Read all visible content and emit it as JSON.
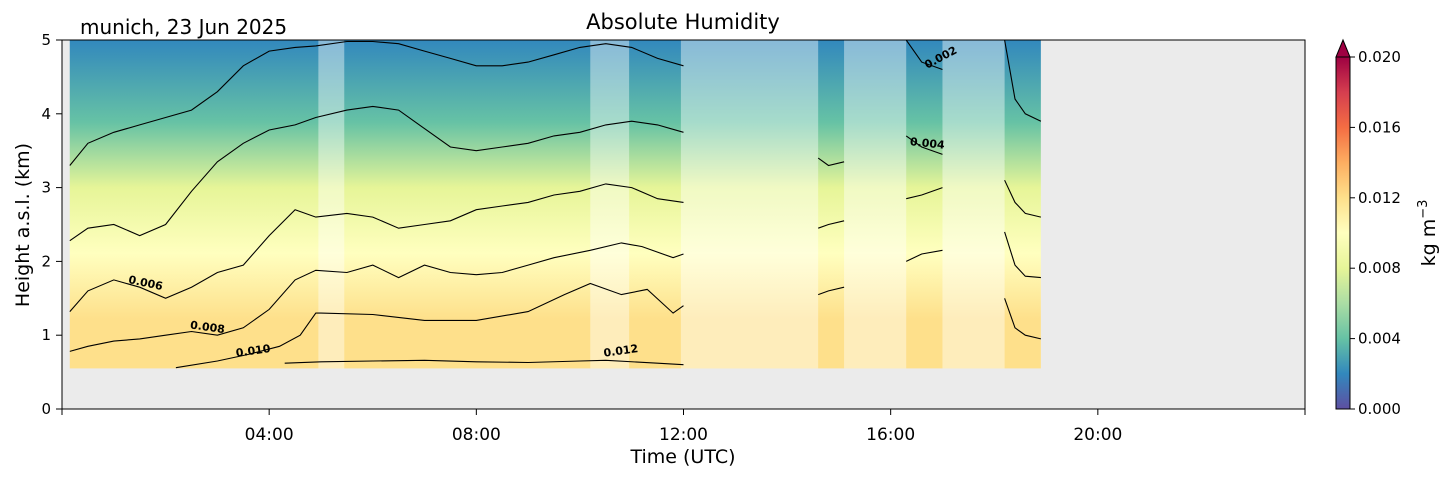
{
  "page": {
    "station_label": "munich, 23 Jun 2025"
  },
  "chart_data": {
    "type": "heatmap",
    "title": "Absolute Humidity",
    "xlabel": "Time (UTC)",
    "ylabel": "Height a.s.l. (km)",
    "x_unit": "hours UTC",
    "xlim": [
      0,
      24
    ],
    "ylim": [
      0,
      5
    ],
    "x_ticks": [
      {
        "value": 4,
        "label": "04:00"
      },
      {
        "value": 8,
        "label": "08:00"
      },
      {
        "value": 12,
        "label": "12:00"
      },
      {
        "value": 16,
        "label": "16:00"
      },
      {
        "value": 20,
        "label": "20:00"
      }
    ],
    "y_ticks": [
      {
        "value": 0,
        "label": "0"
      },
      {
        "value": 1,
        "label": "1"
      },
      {
        "value": 2,
        "label": "2"
      },
      {
        "value": 3,
        "label": "3"
      },
      {
        "value": 4,
        "label": "4"
      },
      {
        "value": 5,
        "label": "5"
      }
    ],
    "data_extent": {
      "time_start": 0.15,
      "time_end": 18.9,
      "height_min": 0.55,
      "height_max": 5.0
    },
    "colorbar": {
      "label": "kg m",
      "label_exponent": "−3",
      "colormap": "Spectral_r",
      "vmin": 0.0,
      "vmax": 0.02,
      "extend": "max",
      "ticks": [
        {
          "value": 0.0,
          "label": "0.000"
        },
        {
          "value": 0.004,
          "label": "0.004"
        },
        {
          "value": 0.008,
          "label": "0.008"
        },
        {
          "value": 0.012,
          "label": "0.012"
        },
        {
          "value": 0.016,
          "label": "0.016"
        },
        {
          "value": 0.02,
          "label": "0.020"
        }
      ],
      "stops": [
        "#5e4fa2",
        "#3288bd",
        "#66c2a5",
        "#abdda4",
        "#e6f598",
        "#ffffbf",
        "#fee08b",
        "#fdae61",
        "#f46d43",
        "#d53e4f",
        "#9e0142"
      ]
    },
    "background_color": "#ebebeb",
    "contours": [
      {
        "level": 0.012,
        "label": "0.012",
        "label_at": [
          10.8,
          0.74
        ],
        "label_angle": -8,
        "points": [
          [
            4.3,
            0.62
          ],
          [
            5.0,
            0.64
          ],
          [
            6.0,
            0.65
          ],
          [
            7.0,
            0.66
          ],
          [
            8.0,
            0.64
          ],
          [
            9.0,
            0.63
          ],
          [
            10.0,
            0.65
          ],
          [
            10.5,
            0.66
          ],
          [
            11.5,
            0.62
          ],
          [
            12.0,
            0.6
          ]
        ]
      },
      {
        "level": 0.01,
        "label": "0.010",
        "label_at": [
          3.7,
          0.74
        ],
        "label_angle": -8,
        "points": [
          [
            2.2,
            0.56
          ],
          [
            3.0,
            0.65
          ],
          [
            3.6,
            0.74
          ],
          [
            4.2,
            0.85
          ],
          [
            4.6,
            1.0
          ],
          [
            4.9,
            1.3
          ],
          [
            5.0,
            1.3
          ],
          [
            6.0,
            1.28
          ],
          [
            7.0,
            1.2
          ],
          [
            8.0,
            1.2
          ],
          [
            9.0,
            1.32
          ],
          [
            9.7,
            1.55
          ],
          [
            10.2,
            1.7
          ],
          [
            10.8,
            1.55
          ],
          [
            11.3,
            1.62
          ],
          [
            11.8,
            1.3
          ],
          [
            12.0,
            1.4
          ]
        ]
      },
      {
        "level": 0.008,
        "label": "0.008",
        "label_at": [
          2.8,
          1.06
        ],
        "label_angle": 8,
        "points": [
          [
            0.15,
            0.78
          ],
          [
            0.5,
            0.85
          ],
          [
            1.0,
            0.92
          ],
          [
            1.5,
            0.95
          ],
          [
            2.0,
            1.0
          ],
          [
            2.5,
            1.05
          ],
          [
            3.0,
            1.0
          ],
          [
            3.5,
            1.1
          ],
          [
            4.0,
            1.35
          ],
          [
            4.5,
            1.75
          ],
          [
            4.9,
            1.88
          ],
          [
            5.5,
            1.85
          ],
          [
            6.0,
            1.95
          ],
          [
            6.5,
            1.78
          ],
          [
            7.0,
            1.95
          ],
          [
            7.5,
            1.85
          ],
          [
            8.0,
            1.82
          ],
          [
            8.5,
            1.85
          ],
          [
            9.0,
            1.95
          ],
          [
            9.5,
            2.05
          ],
          [
            10.2,
            2.15
          ],
          [
            10.8,
            2.25
          ],
          [
            11.2,
            2.2
          ],
          [
            11.8,
            2.05
          ],
          [
            12.0,
            2.1
          ]
        ]
      },
      {
        "level": 0.006,
        "label": "0.006",
        "label_at": [
          1.6,
          1.66
        ],
        "label_angle": 12,
        "points": [
          [
            0.15,
            1.32
          ],
          [
            0.5,
            1.6
          ],
          [
            1.0,
            1.75
          ],
          [
            1.5,
            1.65
          ],
          [
            2.0,
            1.5
          ],
          [
            2.5,
            1.65
          ],
          [
            3.0,
            1.85
          ],
          [
            3.5,
            1.95
          ],
          [
            4.0,
            2.35
          ],
          [
            4.5,
            2.7
          ],
          [
            4.9,
            2.6
          ],
          [
            5.5,
            2.65
          ],
          [
            6.0,
            2.6
          ],
          [
            6.5,
            2.45
          ],
          [
            7.0,
            2.5
          ],
          [
            7.5,
            2.55
          ],
          [
            8.0,
            2.7
          ],
          [
            8.5,
            2.75
          ],
          [
            9.0,
            2.8
          ],
          [
            9.5,
            2.9
          ],
          [
            10.0,
            2.95
          ],
          [
            10.5,
            3.05
          ],
          [
            11.0,
            3.0
          ],
          [
            11.5,
            2.85
          ],
          [
            12.0,
            2.8
          ]
        ]
      },
      {
        "level": 0.004,
        "label": "0.004",
        "label_at": [
          16.7,
          3.55
        ],
        "label_angle": 6,
        "points": [
          [
            0.15,
            2.28
          ],
          [
            0.5,
            2.45
          ],
          [
            1.0,
            2.5
          ],
          [
            1.5,
            2.35
          ],
          [
            2.0,
            2.5
          ],
          [
            2.5,
            2.95
          ],
          [
            3.0,
            3.35
          ],
          [
            3.5,
            3.6
          ],
          [
            4.0,
            3.78
          ],
          [
            4.5,
            3.85
          ],
          [
            4.9,
            3.95
          ],
          [
            5.5,
            4.05
          ],
          [
            6.0,
            4.1
          ],
          [
            6.5,
            4.05
          ],
          [
            7.0,
            3.8
          ],
          [
            7.5,
            3.55
          ],
          [
            8.0,
            3.5
          ],
          [
            8.5,
            3.55
          ],
          [
            9.0,
            3.6
          ],
          [
            9.5,
            3.7
          ],
          [
            10.0,
            3.75
          ],
          [
            10.5,
            3.85
          ],
          [
            11.0,
            3.9
          ],
          [
            11.5,
            3.85
          ],
          [
            12.0,
            3.75
          ]
        ]
      },
      {
        "level": 0.002,
        "label": "0.002",
        "label_at": [
          17.0,
          4.72
        ],
        "label_angle": -28,
        "points": [
          [
            0.15,
            3.3
          ],
          [
            0.5,
            3.6
          ],
          [
            1.0,
            3.75
          ],
          [
            1.5,
            3.85
          ],
          [
            2.0,
            3.95
          ],
          [
            2.5,
            4.05
          ],
          [
            3.0,
            4.3
          ],
          [
            3.5,
            4.65
          ],
          [
            4.0,
            4.85
          ],
          [
            4.5,
            4.9
          ],
          [
            4.9,
            4.92
          ],
          [
            5.5,
            4.98
          ],
          [
            6.0,
            4.98
          ],
          [
            6.5,
            4.95
          ],
          [
            7.0,
            4.85
          ],
          [
            7.5,
            4.75
          ],
          [
            8.0,
            4.65
          ],
          [
            8.5,
            4.65
          ],
          [
            9.0,
            4.7
          ],
          [
            9.5,
            4.8
          ],
          [
            10.0,
            4.9
          ],
          [
            10.5,
            4.95
          ],
          [
            11.0,
            4.9
          ],
          [
            11.5,
            4.75
          ],
          [
            12.0,
            4.65
          ]
        ]
      }
    ],
    "right_segment_lines": [
      {
        "level": 0.002,
        "points": [
          [
            16.3,
            5.0
          ],
          [
            16.6,
            4.7
          ],
          [
            17.0,
            4.6
          ]
        ]
      },
      {
        "level": 0.004,
        "points": [
          [
            16.3,
            3.7
          ],
          [
            16.6,
            3.55
          ],
          [
            17.0,
            3.45
          ]
        ]
      },
      {
        "level": 0.006,
        "points": [
          [
            16.3,
            2.85
          ],
          [
            16.6,
            2.9
          ],
          [
            17.0,
            3.0
          ]
        ]
      },
      {
        "level": 0.008,
        "points": [
          [
            16.3,
            2.0
          ],
          [
            16.6,
            2.1
          ],
          [
            17.0,
            2.15
          ]
        ]
      },
      {
        "level": 0.002,
        "points": [
          [
            18.2,
            5.0
          ],
          [
            18.4,
            4.2
          ],
          [
            18.6,
            4.0
          ],
          [
            18.9,
            3.9
          ]
        ]
      },
      {
        "level": 0.004,
        "points": [
          [
            18.2,
            3.1
          ],
          [
            18.4,
            2.8
          ],
          [
            18.6,
            2.65
          ],
          [
            18.9,
            2.6
          ]
        ]
      },
      {
        "level": 0.006,
        "points": [
          [
            18.2,
            2.4
          ],
          [
            18.4,
            1.95
          ],
          [
            18.6,
            1.8
          ],
          [
            18.9,
            1.78
          ]
        ]
      },
      {
        "level": 0.008,
        "points": [
          [
            18.2,
            1.5
          ],
          [
            18.4,
            1.1
          ],
          [
            18.6,
            1.0
          ],
          [
            18.9,
            0.95
          ]
        ]
      },
      {
        "level": 0.004,
        "points": [
          [
            14.6,
            3.4
          ],
          [
            14.8,
            3.3
          ],
          [
            15.1,
            3.35
          ]
        ]
      },
      {
        "level": 0.006,
        "points": [
          [
            14.6,
            2.45
          ],
          [
            14.8,
            2.5
          ],
          [
            15.1,
            2.55
          ]
        ]
      },
      {
        "level": 0.008,
        "points": [
          [
            14.6,
            1.55
          ],
          [
            14.8,
            1.6
          ],
          [
            15.1,
            1.65
          ]
        ]
      }
    ],
    "gap_bands": [
      {
        "start": 4.95,
        "end": 5.45
      },
      {
        "start": 10.2,
        "end": 10.95
      },
      {
        "start": 11.95,
        "end": 14.6
      },
      {
        "start": 15.1,
        "end": 16.3
      },
      {
        "start": 17.0,
        "end": 18.2
      }
    ]
  }
}
